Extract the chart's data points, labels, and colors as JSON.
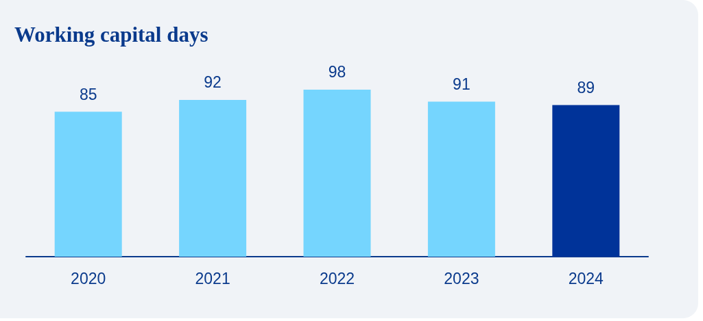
{
  "chart_data": {
    "type": "bar",
    "title": "Working capital days",
    "categories": [
      "2020",
      "2021",
      "2022",
      "2023",
      "2024"
    ],
    "values": [
      85,
      92,
      98,
      91,
      89
    ],
    "colors": [
      "#75d5fe",
      "#75d5fe",
      "#75d5fe",
      "#75d5fe",
      "#003399"
    ],
    "tick_labels": "x",
    "data_labels": true
  }
}
